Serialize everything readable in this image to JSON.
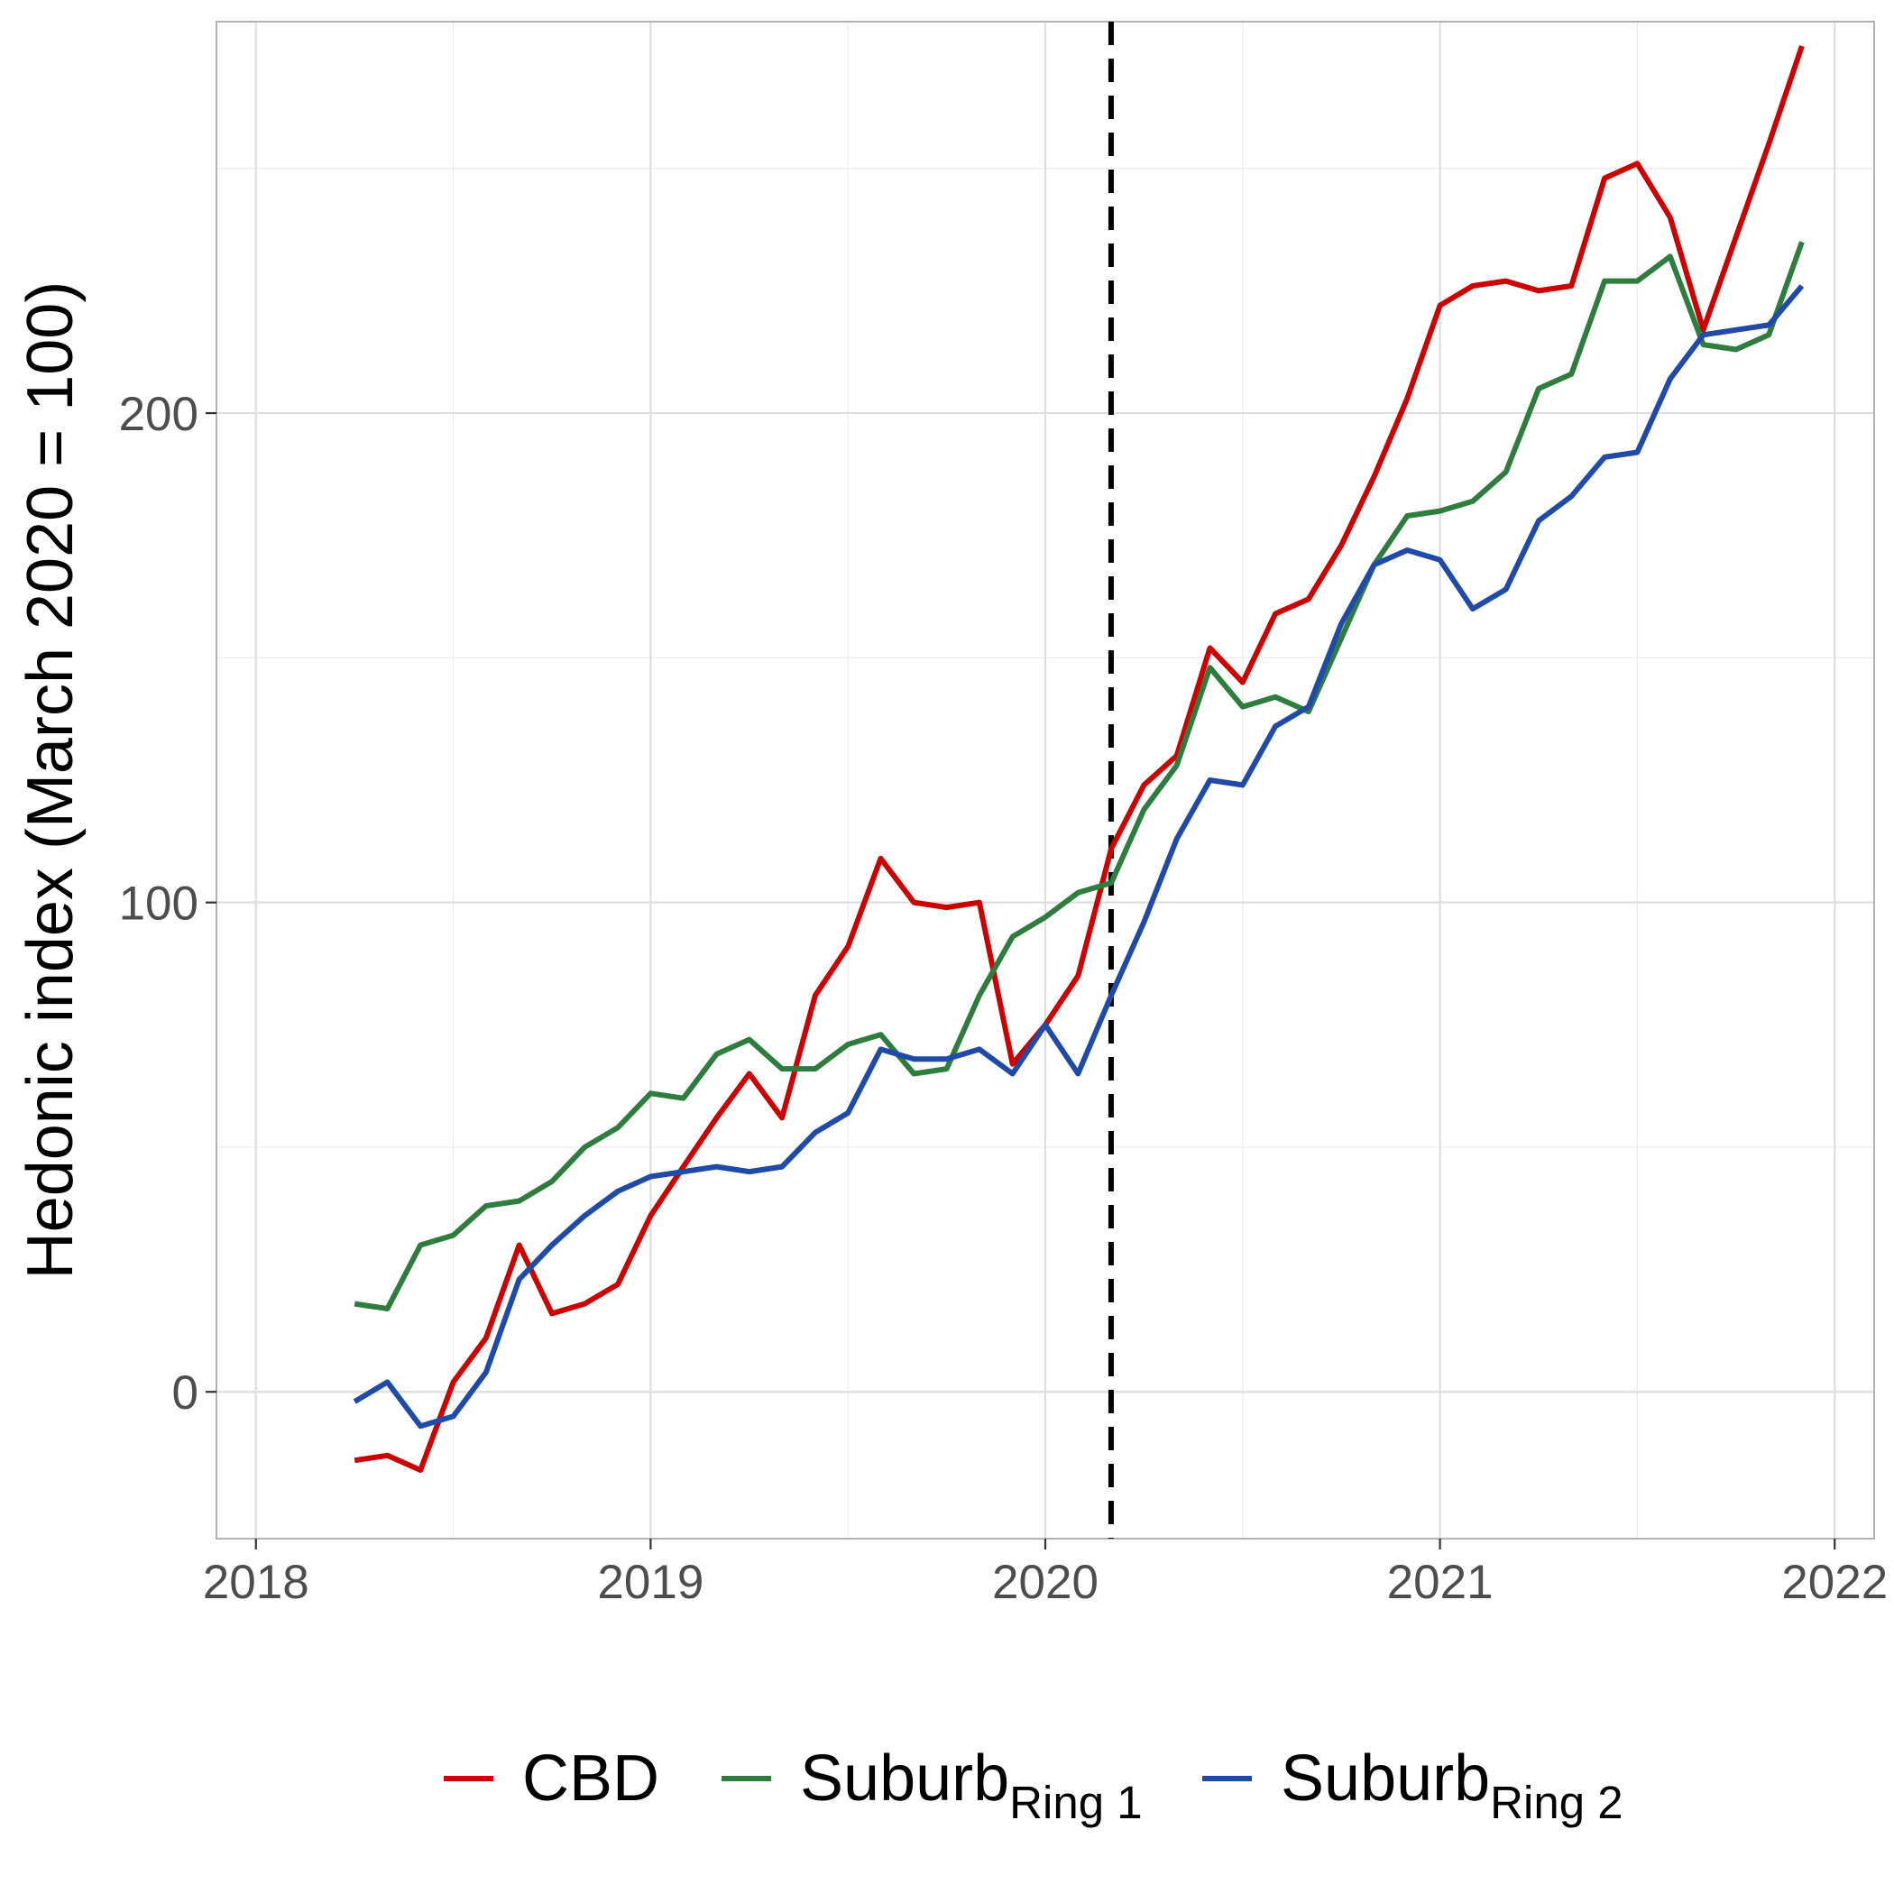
{
  "chart_data": {
    "type": "line",
    "xlabel": "",
    "ylabel": "Hedonic index (March 2020 = 100)",
    "xlim": [
      2017.9,
      2022.1
    ],
    "ylim": [
      -30,
      280
    ],
    "x_ticks": [
      2018,
      2019,
      2020,
      2021,
      2022
    ],
    "x_tick_labels": [
      "2018",
      "2019",
      "2020",
      "2021",
      "2022"
    ],
    "y_ticks": [
      0,
      100,
      200
    ],
    "y_tick_labels": [
      "0",
      "100",
      "200"
    ],
    "grid": true,
    "legend_position": "bottom",
    "reference_line": {
      "x": 2020.1667,
      "style": "dashed",
      "color": "#000000"
    },
    "x": [
      2018.25,
      2018.333,
      2018.417,
      2018.5,
      2018.583,
      2018.667,
      2018.75,
      2018.833,
      2018.917,
      2019.0,
      2019.083,
      2019.167,
      2019.25,
      2019.333,
      2019.417,
      2019.5,
      2019.583,
      2019.667,
      2019.75,
      2019.833,
      2019.917,
      2020.0,
      2020.083,
      2020.167,
      2020.25,
      2020.333,
      2020.417,
      2020.5,
      2020.583,
      2020.667,
      2020.75,
      2020.833,
      2020.917,
      2021.0,
      2021.083,
      2021.167,
      2021.25,
      2021.333,
      2021.417,
      2021.5,
      2021.583,
      2021.667,
      2021.75,
      2021.833,
      2021.917
    ],
    "series": [
      {
        "name": "CBD",
        "color": "#cc0000",
        "values": [
          -14,
          -13,
          -16,
          2,
          11,
          30,
          16,
          18,
          22,
          36,
          46,
          56,
          65,
          56,
          81,
          91,
          109,
          100,
          99,
          100,
          67,
          75,
          85,
          111,
          124,
          130,
          152,
          145,
          159,
          162,
          173,
          187,
          203,
          222,
          226,
          227,
          225,
          226,
          248,
          251,
          240,
          217,
          236,
          255,
          275
        ]
      },
      {
        "name": "Suburb",
        "name_subscript": "Ring 1",
        "color": "#2e7d3e",
        "values": [
          18,
          17,
          30,
          32,
          38,
          39,
          43,
          50,
          54,
          61,
          60,
          69,
          72,
          66,
          66,
          71,
          73,
          65,
          66,
          81,
          93,
          97,
          102,
          104,
          119,
          128,
          148,
          140,
          142,
          139,
          154,
          169,
          179,
          180,
          182,
          188,
          205,
          208,
          227,
          227,
          232,
          214,
          213,
          216,
          235
        ]
      },
      {
        "name": "Suburb",
        "name_subscript": "Ring 2",
        "color": "#1f4aa8",
        "values": [
          -2,
          2,
          -7,
          -5,
          4,
          23,
          30,
          36,
          41,
          44,
          45,
          46,
          45,
          46,
          53,
          57,
          70,
          68,
          68,
          70,
          65,
          75,
          65,
          81,
          96,
          113,
          125,
          124,
          136,
          140,
          157,
          169,
          172,
          170,
          160,
          164,
          178,
          183,
          191,
          192,
          207,
          216,
          217,
          218,
          226
        ]
      }
    ]
  }
}
